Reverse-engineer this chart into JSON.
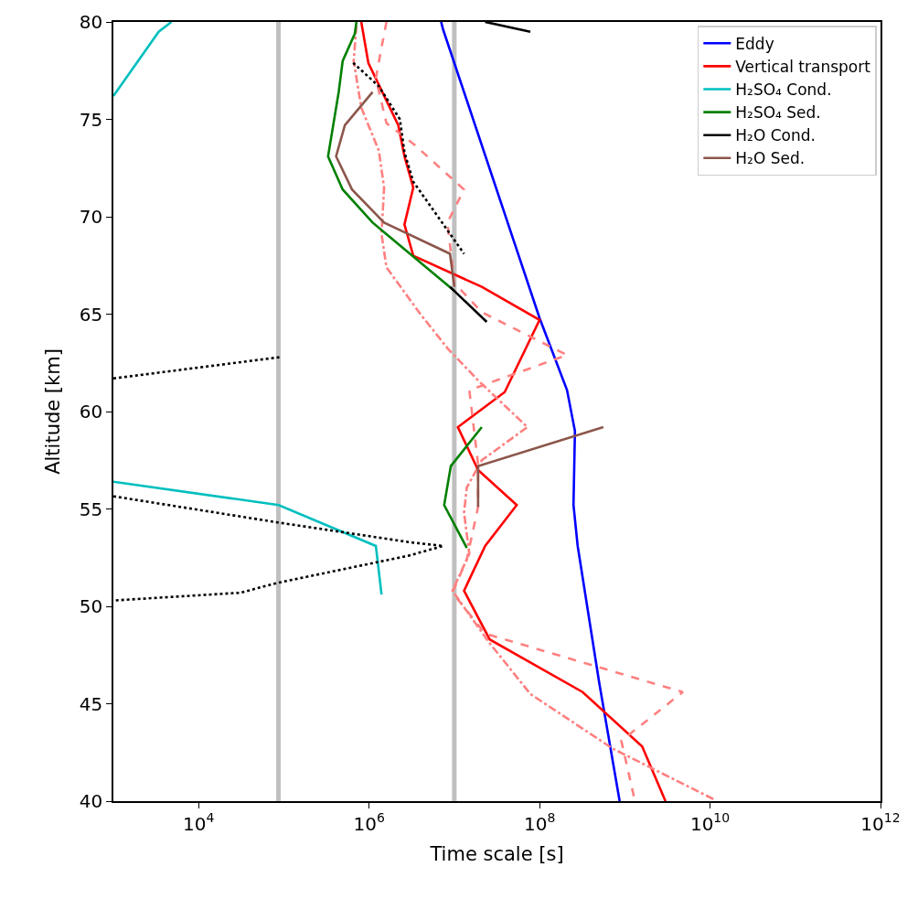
{
  "chart_data": {
    "type": "line",
    "xlabel": "Time scale [s]",
    "ylabel": "Altitude [km]",
    "log": "x",
    "xlim": [
      1000,
      1000000000000
    ],
    "ylim": [
      40,
      80
    ],
    "xticks": [
      {
        "value": 10000,
        "label": "10$^{4}$"
      },
      {
        "value": 1000000,
        "label": "10$^{6}$"
      },
      {
        "value": 100000000,
        "label": "10$^{8}$"
      },
      {
        "value": 10000000000,
        "label": "10$^{10}$"
      },
      {
        "value": 1000000000000,
        "label": "10$^{12}$"
      }
    ],
    "yticks": [
      40,
      45,
      50,
      55,
      60,
      65,
      70,
      75,
      80
    ],
    "grid": false,
    "legend": "top right",
    "marker": "none",
    "ref_lines": [
      {
        "axis": "x",
        "value": 86400,
        "color": "#c0c0c0",
        "line_style": "solid"
      },
      {
        "axis": "x",
        "value": 10000000,
        "color": "#c0c0c0",
        "line_style": "solid"
      }
    ],
    "series": [
      {
        "name": "Eddy",
        "color": "#0000ff",
        "line_style": "solid",
        "x": [
          7000000.0,
          7400000.0,
          100000000.0,
          210000000.0,
          260000000.0,
          250000000.0,
          280000000.0,
          500000000.0,
          870000000.0
        ],
        "values": [
          80,
          79.6,
          64.8,
          61.1,
          59.0,
          55.2,
          53.1,
          46.1,
          40
        ]
      },
      {
        "name": "Vertical transport",
        "color": "#ff0000",
        "line_style": "solid",
        "x": [
          810000.0,
          980000.0,
          2200000.0,
          2600000.0,
          3300000.0,
          2600000.0,
          3300000.0,
          21000000.0,
          100000000.0,
          39000000.0,
          11000000.0,
          19000000.0,
          54000000.0,
          23000000.0,
          13000000.0,
          26000000.0,
          320000000.0,
          1600000000.0,
          3000000000.0
        ],
        "values": [
          80,
          77.9,
          74.7,
          73.1,
          71.5,
          69.6,
          68.0,
          66.4,
          64.7,
          61.0,
          59.2,
          57.0,
          55.2,
          53.1,
          50.8,
          48.3,
          45.6,
          42.8,
          40
        ]
      },
      {
        "color": "#ff8080",
        "line_style": "dashed",
        "x": [
          1600000.0,
          1400000.0,
          1200000.0,
          1600000.0,
          3400000.0,
          13000000.0,
          8300000.0,
          10000000.0,
          21000000.0,
          210000000.0,
          15000000.0,
          19000000.0,
          19000000.0,
          14000000.0,
          9500000.0,
          23000000.0,
          4800000000.0,
          910000000.0,
          1300000000.0
        ],
        "values": [
          80,
          78.7,
          77.1,
          74.8,
          73.7,
          71.4,
          69.7,
          66.6,
          65.1,
          62.9,
          61.1,
          57.3,
          55.1,
          52.4,
          50.7,
          48.6,
          45.6,
          43.1,
          40.1
        ]
      },
      {
        "color": "#ff8080",
        "line_style": "dashdot",
        "x": [
          710000.0,
          660000.0,
          810000.0,
          1300000.0,
          1500000.0,
          1400000.0,
          1600000.0,
          4000000.0,
          8500000.0,
          19000000.0,
          72000000.0,
          21000000.0,
          14000000.0,
          13000000.0,
          15000000.0,
          9500000.0,
          25000000.0,
          78000000.0,
          720000000.0,
          11000000000.0
        ],
        "values": [
          79.8,
          78.0,
          75.6,
          73.4,
          71.5,
          69.1,
          67.4,
          65.0,
          63.2,
          61.6,
          59.2,
          57.5,
          56.1,
          54.8,
          52.7,
          50.8,
          48.2,
          45.5,
          42.7,
          40.1
        ]
      },
      {
        "name": "H₂SO₄ Cond.",
        "color": "#00bfbf",
        "line_style": "solid",
        "x": [
          4800,
          3400,
          1000,
          null,
          1000,
          87000,
          1200000.0,
          1400000.0
        ],
        "values": [
          80,
          79.5,
          76.2,
          null,
          56.4,
          55.2,
          53.1,
          50.6
        ]
      },
      {
        "name": "H₂SO₄ Sed.",
        "color": "#008000",
        "line_style": "solid",
        "x": [
          710000.0,
          680000.0,
          490000.0,
          440000.0,
          330000.0,
          490000.0,
          1100000.0,
          3200000.0,
          10000000.0,
          null,
          21000000.0,
          9100000.0,
          7600000.0,
          14000000.0
        ],
        "values": [
          80,
          79.4,
          78.0,
          76.4,
          73.1,
          71.4,
          69.7,
          68.0,
          66.2,
          null,
          59.2,
          57.2,
          55.2,
          53.0
        ]
      },
      {
        "name": "H₂O Cond.",
        "color": "#000000",
        "line_style": "solid",
        "x": [
          23000000.0,
          78000000.0,
          null,
          8900000.0,
          24000000.0
        ],
        "values": [
          80,
          79.5,
          null,
          66.4,
          64.6
        ]
      },
      {
        "name": "H₂O Sed.",
        "color": "#8c564b",
        "line_style": "solid",
        "x": [
          1100000.0,
          520000.0,
          410000.0,
          630000.0,
          1500000.0,
          8900000.0,
          10000000.0,
          null,
          560000000.0,
          19000000.0,
          19000000.0
        ],
        "values": [
          76.4,
          74.7,
          73.1,
          71.4,
          69.7,
          68.1,
          66.4,
          null,
          59.2,
          57.2,
          55.1
        ]
      },
      {
        "color": "#000000",
        "line_style": "dotted",
        "x": [
          650000.0,
          1300000.0,
          2300000.0,
          2600000.0,
          3300000.0,
          13000000.0,
          null,
          1000,
          93000,
          null,
          1000,
          87000,
          2900000.0,
          7400000.0,
          2900000.0,
          83000,
          31000,
          1000
        ],
        "values": [
          77.9,
          76.7,
          75.0,
          73.3,
          71.8,
          68.1,
          null,
          61.7,
          62.8,
          null,
          55.65,
          54.3,
          53.3,
          53.1,
          52.6,
          51.2,
          50.7,
          50.3
        ]
      }
    ]
  }
}
